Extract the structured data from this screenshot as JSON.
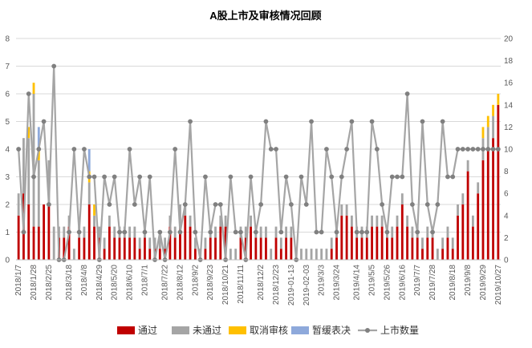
{
  "chart_data": {
    "type": "bar",
    "title": "A股上市及审核情况回顾",
    "xlabel": "",
    "ylabel": "",
    "ylim": [
      0,
      8
    ],
    "y2lim": [
      0,
      20
    ],
    "yticks": [
      0,
      1,
      2,
      3,
      4,
      5,
      6,
      7,
      8
    ],
    "y2ticks": [
      0,
      2,
      4,
      6,
      8,
      10,
      12,
      14,
      16,
      18,
      20
    ],
    "grid": true,
    "legend_position": "bottom",
    "stacked": true,
    "x_tick_labels": [
      "2018/1/7",
      "2018/1/28",
      "2018/2/25",
      "2018/3/18",
      "2018/4/8",
      "2018/4/29",
      "2018/5/20",
      "2018/6/10",
      "2018/7/1",
      "2018/7/22",
      "2018/8/12",
      "2018/9/2",
      "2018/9/23",
      "2018/10/21",
      "2018/11/11",
      "2018/12/2",
      "2018/12/23",
      "2019-01-13",
      "2019-02-03",
      "2019/3/3",
      "2019/3/24",
      "2019/4/14",
      "2019/5/5",
      "2019/5/26",
      "2019/6/16",
      "2019/7/7",
      "2019/7/28",
      "2019/8/18",
      "2019/9/8",
      "2019/9/29",
      "2019/10/27"
    ],
    "weeks": 96,
    "series": [
      {
        "name": "通过",
        "type": "bar",
        "axis": "left",
        "color": "#C00000",
        "values": [
          1.6,
          2.4,
          2.0,
          1.2,
          1.2,
          2.0,
          2.0,
          0.0,
          0.8,
          0.8,
          1.2,
          0.0,
          0.8,
          0.8,
          2.0,
          1.2,
          0.8,
          0.4,
          1.2,
          0.8,
          0.8,
          0.8,
          0.8,
          0.8,
          0.4,
          0.8,
          0.4,
          0.4,
          0.4,
          0.4,
          1.2,
          0.8,
          1.2,
          1.6,
          1.2,
          0.4,
          0.0,
          0.4,
          0.8,
          0.8,
          1.2,
          1.2,
          0.0,
          0.0,
          0.8,
          0.8,
          1.2,
          0.8,
          0.8,
          0.8,
          0.0,
          0.8,
          0.4,
          0.8,
          0.8,
          0.0,
          0.0,
          0.0,
          0.0,
          0.0,
          0.0,
          0.0,
          0.4,
          0.8,
          1.6,
          1.6,
          1.2,
          0.8,
          0.8,
          0.8,
          1.2,
          1.2,
          1.2,
          0.8,
          0.8,
          1.2,
          2.0,
          1.2,
          0.8,
          0.8,
          0.4,
          0.8,
          0.8,
          0.0,
          0.4,
          0.8,
          0.4,
          1.6,
          2.0,
          3.2,
          1.2,
          2.4,
          3.6,
          4.0,
          4.4,
          5.6
        ],
        "display": "all"
      },
      {
        "name": "未通过",
        "type": "bar",
        "axis": "left",
        "color": "#A5A5A5",
        "values": [
          0.8,
          2.0,
          2.4,
          4.8,
          2.4,
          0,
          1.6,
          1.2,
          0.4,
          0.4,
          0.4,
          0.4,
          0.4,
          0.4,
          0.8,
          0.4,
          0.4,
          0.4,
          0.4,
          0.4,
          0.4,
          0.4,
          0.4,
          0.4,
          0.4,
          0.4,
          0.4,
          0.4,
          0.4,
          0.4,
          0.4,
          0.4,
          0.8,
          0.4,
          0.4,
          0.4,
          0.4,
          0.4,
          0.4,
          0.4,
          0.4,
          0.4,
          0.4,
          0.4,
          0.4,
          0.4,
          0.4,
          0.4,
          0.4,
          0.4,
          0.4,
          0.4,
          0.4,
          0.4,
          0.4,
          0.4,
          0.4,
          0.4,
          0.4,
          0.4,
          0.4,
          0.4,
          0.4,
          0.4,
          0.4,
          0.4,
          0.4,
          0.4,
          0.4,
          0.4,
          0.4,
          0.4,
          0.4,
          0.4,
          0.4,
          0.4,
          0.4,
          0.4,
          0.4,
          0.4,
          0.4,
          0.4,
          0.4,
          0.4,
          0.4,
          0.4,
          0.4,
          0.4,
          0.4,
          0.4,
          0.4,
          0.4,
          0.8,
          0.8,
          0.8,
          0.0
        ]
      },
      {
        "name": "取消审核",
        "type": "bar",
        "axis": "left",
        "color": "#FFC000",
        "values": [
          0,
          0,
          0.4,
          0.4,
          0.4,
          0,
          0,
          0,
          0,
          0,
          0,
          0,
          0,
          0,
          0.4,
          0.4,
          0,
          0,
          0,
          0,
          0,
          0,
          0,
          0,
          0,
          0,
          0,
          0,
          0,
          0,
          0,
          0,
          0,
          0,
          0,
          0,
          0,
          0,
          0,
          0,
          0,
          0,
          0,
          0,
          0,
          0,
          0,
          0,
          0,
          0,
          0,
          0,
          0,
          0,
          0,
          0,
          0,
          0,
          0,
          0,
          0,
          0,
          0,
          0,
          0,
          0,
          0,
          0,
          0,
          0,
          0,
          0,
          0,
          0,
          0,
          0,
          0,
          0,
          0,
          0,
          0,
          0,
          0,
          0,
          0,
          0,
          0,
          0,
          0,
          0,
          0,
          0,
          0.4,
          0.4,
          0.4,
          0.4
        ]
      },
      {
        "name": "暂缓表决",
        "type": "bar",
        "axis": "left",
        "color": "#8EA9DB",
        "values": [
          0,
          0,
          0,
          0,
          0.8,
          0,
          0,
          0,
          0,
          0,
          0,
          0,
          0,
          0,
          0.8,
          0,
          0,
          0,
          0,
          0,
          0,
          0,
          0,
          0,
          0,
          0,
          0,
          0,
          0,
          0,
          0,
          0,
          0,
          0,
          0,
          0,
          0,
          0,
          0,
          0,
          0,
          0,
          0,
          0,
          0,
          0,
          0,
          0,
          0,
          0,
          0,
          0,
          0,
          0,
          0,
          0,
          0,
          0,
          0,
          0,
          0,
          0,
          0,
          0,
          0,
          0,
          0,
          0,
          0,
          0,
          0,
          0,
          0,
          0,
          0,
          0,
          0,
          0,
          0,
          0,
          0,
          0,
          0,
          0,
          0,
          0,
          0,
          0,
          0,
          0,
          0,
          0,
          0,
          0,
          0,
          0
        ]
      },
      {
        "name": "上市数量",
        "type": "line",
        "axis": "right",
        "color": "#A5A5A5",
        "values": [
          10,
          2.5,
          15,
          7.5,
          10,
          12.5,
          5,
          17.5,
          0,
          0,
          2.5,
          10,
          2.5,
          10,
          7.5,
          7.5,
          0,
          7.5,
          5,
          7.5,
          2.5,
          2.5,
          10,
          5,
          7.5,
          2.5,
          7.5,
          0,
          2.5,
          0,
          2.5,
          10,
          2.5,
          5,
          12.5,
          2.5,
          0,
          7.5,
          2.5,
          5,
          5,
          0,
          7.5,
          2.5,
          2.5,
          0,
          7.5,
          2.5,
          5,
          12.5,
          10,
          10,
          2.5,
          7.5,
          5,
          0,
          7.5,
          5,
          12.5,
          2.5,
          2.5,
          10,
          7.5,
          2.5,
          7.5,
          10,
          12.5,
          2.5,
          2.5,
          2.5,
          12.5,
          10,
          5,
          2.5,
          7.5,
          7.5,
          7.5,
          15,
          5,
          2.5,
          12.5,
          5,
          2.5,
          5,
          12.5,
          7.5,
          7.5,
          10,
          10,
          10,
          10,
          10,
          10,
          10,
          10,
          10
        ]
      }
    ]
  }
}
